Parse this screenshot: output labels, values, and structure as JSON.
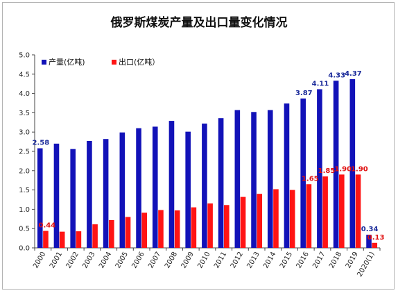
{
  "title": "俄罗斯煤炭产量及出口量变化情况",
  "colors": {
    "production": "#1212b8",
    "export": "#ff1414",
    "production_label": "#1a2a9a",
    "export_label": "#e01010",
    "axis": "#444444"
  },
  "chart_data": {
    "type": "bar",
    "title": "俄罗斯煤炭产量及出口量变化情况",
    "categories": [
      "2000",
      "2001",
      "2002",
      "2003",
      "2004",
      "2005",
      "2006",
      "2007",
      "2008",
      "2009",
      "2010",
      "2011",
      "2012",
      "2013",
      "2014",
      "2015",
      "2016",
      "2017",
      "2018",
      "2019",
      "2020(1)"
    ],
    "series": [
      {
        "name": "产量(亿吨)",
        "values": [
          2.58,
          2.7,
          2.56,
          2.77,
          2.82,
          2.99,
          3.1,
          3.14,
          3.29,
          3.01,
          3.22,
          3.36,
          3.57,
          3.52,
          3.57,
          3.74,
          3.87,
          4.11,
          4.33,
          4.37,
          0.34
        ]
      },
      {
        "name": "出口(亿吨）",
        "values": [
          0.44,
          0.42,
          0.43,
          0.61,
          0.72,
          0.8,
          0.91,
          0.98,
          0.97,
          1.05,
          1.15,
          1.11,
          1.32,
          1.4,
          1.52,
          1.5,
          1.65,
          1.85,
          1.9,
          1.9,
          0.13
        ]
      }
    ],
    "data_labels": {
      "production": {
        "0": "2.58",
        "16": "3.87",
        "17": "4.11",
        "18": "4.33",
        "19": "4.37",
        "20": "0.34"
      },
      "export": {
        "0": "0.44",
        "16": "1.65",
        "17": "1.85",
        "18": "1.90",
        "19": "1.90",
        "20": "0.13"
      }
    },
    "xlabel": "",
    "ylabel": "",
    "ylim": [
      0,
      5.0
    ],
    "yticks": [
      "0.0",
      "0.5",
      "1.0",
      "1.5",
      "2.0",
      "2.5",
      "3.0",
      "3.5",
      "4.0",
      "4.5",
      "5.0"
    ],
    "legend_position": "top-left",
    "grid": false
  }
}
